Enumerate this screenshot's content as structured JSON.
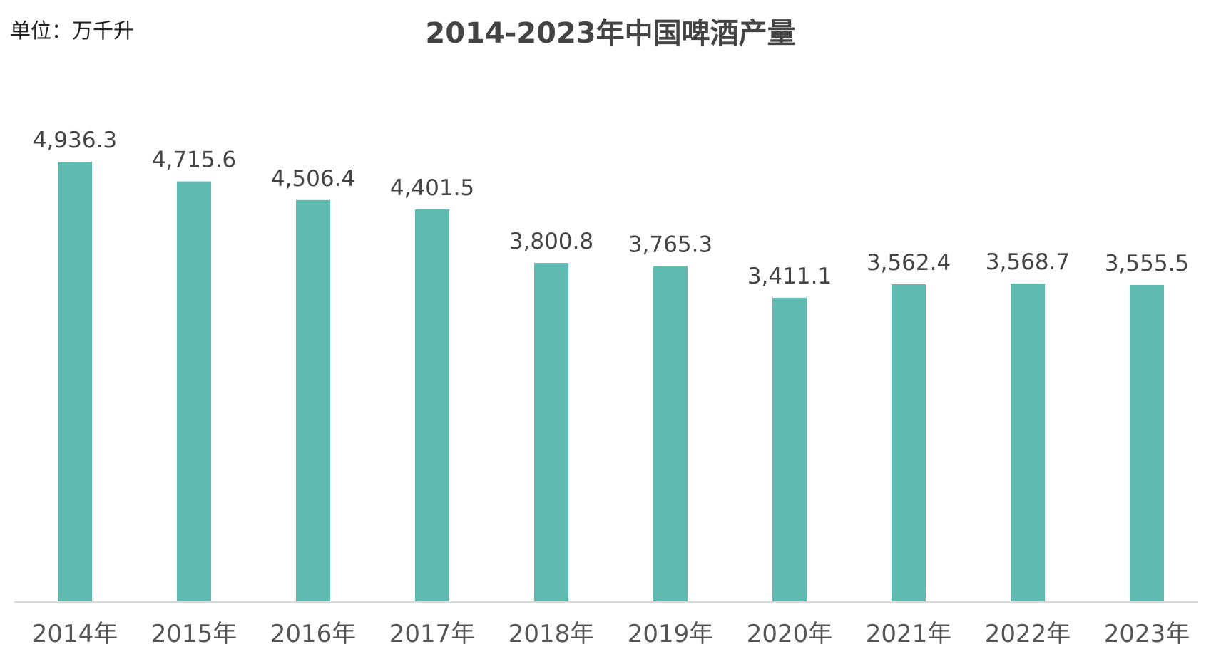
{
  "chart_data": {
    "type": "bar",
    "title": "2014-2023年中国啤酒产量",
    "unit_label": "单位：万千升",
    "categories": [
      "2014年",
      "2015年",
      "2016年",
      "2017年",
      "2018年",
      "2019年",
      "2020年",
      "2021年",
      "2022年",
      "2023年"
    ],
    "values": [
      4936.3,
      4715.6,
      4506.4,
      4401.5,
      3800.8,
      3765.3,
      3411.1,
      3562.4,
      3568.7,
      3555.5
    ],
    "value_labels": [
      "4,936.3",
      "4,715.6",
      "4,506.4",
      "4,401.5",
      "3,800.8",
      "3,765.3",
      "3,411.1",
      "3,562.4",
      "3,568.7",
      "3,555.5"
    ],
    "ylim": [
      0,
      5000
    ],
    "grid": false,
    "legend": "none",
    "bar_color": "#5fbab1",
    "axis_color": "#d9d9d9"
  }
}
